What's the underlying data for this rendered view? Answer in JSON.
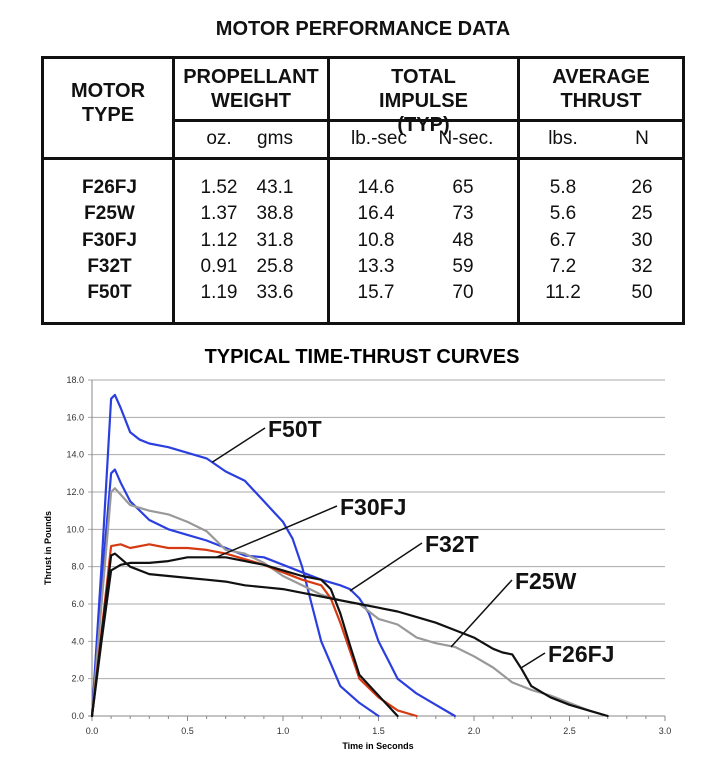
{
  "table": {
    "title": "MOTOR PERFORMANCE DATA",
    "headers": {
      "motor_type": "MOTOR TYPE",
      "propellant_weight": "PROPELLANT WEIGHT",
      "total_impulse": "TOTAL IMPULSE (TYP)",
      "average_thrust": "AVERAGE THRUST"
    },
    "units": [
      "oz.",
      "gms",
      "lb.-sec",
      "N-sec.",
      "lbs.",
      "N"
    ],
    "rows": [
      {
        "motor": "F26FJ",
        "values": [
          "1.52",
          "43.1",
          "14.6",
          "65",
          "5.8",
          "26"
        ]
      },
      {
        "motor": "F25W",
        "values": [
          "1.37",
          "38.8",
          "16.4",
          "73",
          "5.6",
          "25"
        ]
      },
      {
        "motor": "F30FJ",
        "values": [
          "1.12",
          "31.8",
          "10.8",
          "48",
          "6.7",
          "30"
        ]
      },
      {
        "motor": "F32T",
        "values": [
          "0.91",
          "25.8",
          "13.3",
          "59",
          "7.2",
          "32"
        ]
      },
      {
        "motor": "F50T",
        "values": [
          "1.19",
          "33.6",
          "15.7",
          "70",
          "11.2",
          "50"
        ]
      }
    ]
  },
  "chart_data": {
    "type": "line",
    "title": "TYPICAL TIME-THRUST CURVES",
    "xlabel": "Time in Seconds",
    "ylabel": "Thrust in Pounds",
    "xlim": [
      0,
      3.0
    ],
    "ylim": [
      0,
      18.0
    ],
    "xticks": [
      "0.0",
      "0.5",
      "1.0",
      "1.5",
      "2.0",
      "2.5",
      "3.0"
    ],
    "yticks": [
      "0.0",
      "2.0",
      "4.0",
      "6.0",
      "8.0",
      "10.0",
      "12.0",
      "14.0",
      "16.0",
      "18.0"
    ],
    "grid": "horizontal",
    "series": [
      {
        "name": "F50T",
        "color": "#2b3fe0",
        "points": [
          [
            0,
            0
          ],
          [
            0.05,
            8
          ],
          [
            0.1,
            17
          ],
          [
            0.12,
            17.2
          ],
          [
            0.15,
            16.5
          ],
          [
            0.2,
            15.2
          ],
          [
            0.25,
            14.8
          ],
          [
            0.3,
            14.6
          ],
          [
            0.4,
            14.4
          ],
          [
            0.5,
            14.1
          ],
          [
            0.6,
            13.8
          ],
          [
            0.7,
            13.1
          ],
          [
            0.8,
            12.6
          ],
          [
            0.9,
            11.5
          ],
          [
            1.0,
            10.4
          ],
          [
            1.05,
            9.5
          ],
          [
            1.1,
            8
          ],
          [
            1.15,
            6
          ],
          [
            1.2,
            4
          ],
          [
            1.25,
            2.8
          ],
          [
            1.3,
            1.6
          ],
          [
            1.4,
            0.7
          ],
          [
            1.5,
            0
          ]
        ]
      },
      {
        "name": "F32T",
        "color": "#2b3fe0",
        "points": [
          [
            0,
            0
          ],
          [
            0.05,
            7
          ],
          [
            0.1,
            13
          ],
          [
            0.12,
            13.2
          ],
          [
            0.15,
            12.5
          ],
          [
            0.2,
            11.5
          ],
          [
            0.3,
            10.5
          ],
          [
            0.4,
            10
          ],
          [
            0.5,
            9.7
          ],
          [
            0.6,
            9.4
          ],
          [
            0.7,
            9
          ],
          [
            0.8,
            8.6
          ],
          [
            0.9,
            8.5
          ],
          [
            1.0,
            8.1
          ],
          [
            1.1,
            7.7
          ],
          [
            1.2,
            7.3
          ],
          [
            1.3,
            7.0
          ],
          [
            1.35,
            6.8
          ],
          [
            1.4,
            6.3
          ],
          [
            1.45,
            5.5
          ],
          [
            1.5,
            4
          ],
          [
            1.55,
            3
          ],
          [
            1.6,
            2
          ],
          [
            1.7,
            1.2
          ],
          [
            1.8,
            0.6
          ],
          [
            1.9,
            0
          ]
        ]
      },
      {
        "name": "F25W",
        "color": "#999999",
        "points": [
          [
            0,
            0
          ],
          [
            0.05,
            6
          ],
          [
            0.1,
            12
          ],
          [
            0.12,
            12.2
          ],
          [
            0.2,
            11.3
          ],
          [
            0.3,
            11
          ],
          [
            0.4,
            10.8
          ],
          [
            0.5,
            10.4
          ],
          [
            0.6,
            9.9
          ],
          [
            0.7,
            8.9
          ],
          [
            0.8,
            8.7
          ],
          [
            0.9,
            8.2
          ],
          [
            1.0,
            7.5
          ],
          [
            1.1,
            7.0
          ],
          [
            1.2,
            6.5
          ],
          [
            1.3,
            6.2
          ],
          [
            1.4,
            6.0
          ],
          [
            1.5,
            5.2
          ],
          [
            1.6,
            4.9
          ],
          [
            1.7,
            4.2
          ],
          [
            1.8,
            3.9
          ],
          [
            1.9,
            3.7
          ],
          [
            2.0,
            3.2
          ],
          [
            2.1,
            2.6
          ],
          [
            2.2,
            1.8
          ],
          [
            2.3,
            1.4
          ],
          [
            2.4,
            1.1
          ],
          [
            2.5,
            0.7
          ],
          [
            2.6,
            0.3
          ],
          [
            2.7,
            0
          ]
        ]
      },
      {
        "color": "#d63a12",
        "points": [
          [
            0,
            0
          ],
          [
            0.05,
            4.5
          ],
          [
            0.1,
            9.1
          ],
          [
            0.15,
            9.2
          ],
          [
            0.2,
            9.0
          ],
          [
            0.3,
            9.2
          ],
          [
            0.4,
            9.0
          ],
          [
            0.5,
            9.0
          ],
          [
            0.6,
            8.9
          ],
          [
            0.7,
            8.7
          ],
          [
            0.8,
            8.4
          ],
          [
            0.9,
            8.1
          ],
          [
            1.0,
            7.7
          ],
          [
            1.1,
            7.3
          ],
          [
            1.2,
            7.0
          ],
          [
            1.25,
            6.3
          ],
          [
            1.3,
            5.0
          ],
          [
            1.35,
            3.5
          ],
          [
            1.4,
            2.0
          ],
          [
            1.5,
            1.0
          ],
          [
            1.6,
            0.3
          ],
          [
            1.7,
            0
          ]
        ]
      },
      {
        "name": "F30FJ",
        "color": "#111111",
        "points": [
          [
            0,
            0
          ],
          [
            0.05,
            4
          ],
          [
            0.1,
            7.8
          ],
          [
            0.15,
            8.1
          ],
          [
            0.2,
            8.2
          ],
          [
            0.3,
            8.2
          ],
          [
            0.4,
            8.3
          ],
          [
            0.5,
            8.5
          ],
          [
            0.6,
            8.5
          ],
          [
            0.7,
            8.5
          ],
          [
            0.8,
            8.3
          ],
          [
            0.9,
            8.1
          ],
          [
            1.0,
            7.8
          ],
          [
            1.1,
            7.5
          ],
          [
            1.2,
            7.3
          ],
          [
            1.25,
            6.8
          ],
          [
            1.3,
            5.5
          ],
          [
            1.35,
            3.8
          ],
          [
            1.4,
            2.2
          ],
          [
            1.5,
            1.1
          ],
          [
            1.6,
            0
          ]
        ]
      },
      {
        "name": "F26FJ",
        "color": "#111111",
        "points": [
          [
            0,
            0
          ],
          [
            0.05,
            4.3
          ],
          [
            0.1,
            8.6
          ],
          [
            0.12,
            8.7
          ],
          [
            0.2,
            8.0
          ],
          [
            0.3,
            7.6
          ],
          [
            0.4,
            7.5
          ],
          [
            0.5,
            7.4
          ],
          [
            0.6,
            7.3
          ],
          [
            0.7,
            7.2
          ],
          [
            0.8,
            7.0
          ],
          [
            0.9,
            6.9
          ],
          [
            1.0,
            6.8
          ],
          [
            1.1,
            6.6
          ],
          [
            1.2,
            6.4
          ],
          [
            1.3,
            6.2
          ],
          [
            1.4,
            6.0
          ],
          [
            1.5,
            5.8
          ],
          [
            1.6,
            5.6
          ],
          [
            1.7,
            5.3
          ],
          [
            1.8,
            5.0
          ],
          [
            1.9,
            4.6
          ],
          [
            2.0,
            4.2
          ],
          [
            2.1,
            3.6
          ],
          [
            2.15,
            3.4
          ],
          [
            2.2,
            3.3
          ],
          [
            2.25,
            2.5
          ],
          [
            2.3,
            1.6
          ],
          [
            2.4,
            1.0
          ],
          [
            2.5,
            0.6
          ],
          [
            2.6,
            0.3
          ],
          [
            2.7,
            0
          ]
        ]
      }
    ],
    "annotations": [
      {
        "text": "F50T",
        "target": [
          0.63,
          13.6
        ]
      },
      {
        "text": "F30FJ",
        "target": [
          0.65,
          8.5
        ]
      },
      {
        "text": "F32T",
        "target": [
          1.35,
          6.7
        ]
      },
      {
        "text": "F25W",
        "target": [
          1.88,
          3.7
        ]
      },
      {
        "text": "F26FJ",
        "target": [
          2.25,
          2.6
        ]
      }
    ]
  }
}
